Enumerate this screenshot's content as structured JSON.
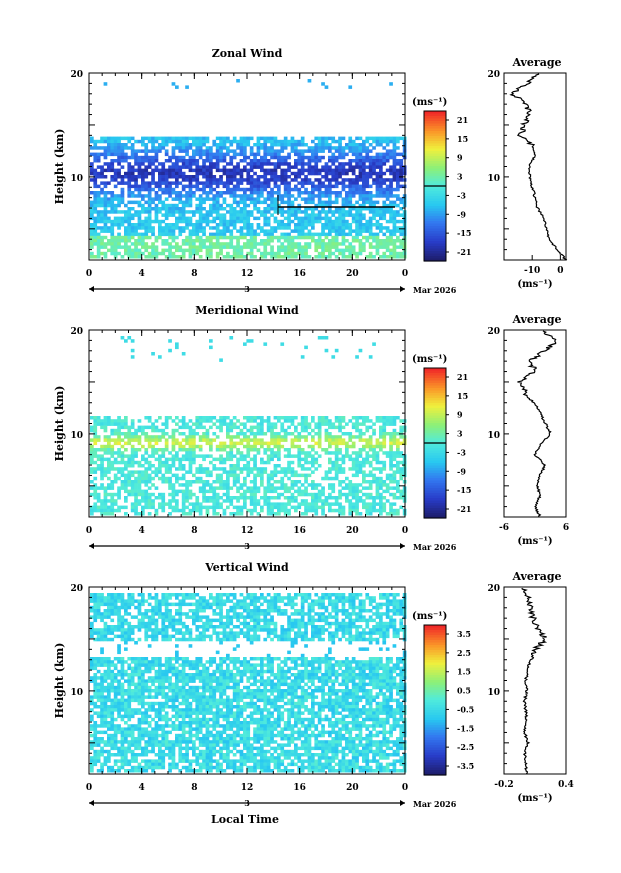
{
  "figure": {
    "date_label": "Mar 2026",
    "xlabel": "Local Time"
  },
  "chart_data": [
    {
      "type": "heatmap",
      "title": "Zonal Wind",
      "ylabel": "Height (km)",
      "xlim": [
        0,
        24
      ],
      "ylim": [
        2,
        20
      ],
      "x_ticks": [
        "0",
        "4",
        "8",
        "12",
        "16",
        "20",
        "0"
      ],
      "y_ticks": [
        "20",
        "10"
      ],
      "day_label": "3",
      "colorbar": {
        "unit": "(ms⁻¹)",
        "range": [
          -24,
          24
        ],
        "labels": [
          "21",
          "15",
          "9",
          "3",
          "-3",
          "-9",
          "-15",
          "-21"
        ]
      },
      "profile": {
        "title": "Average",
        "xlabel": "(ms⁻¹)",
        "xlim": [
          -20,
          2
        ],
        "x_ticks": [
          "-10",
          "0"
        ],
        "y_ticks": [
          "20",
          "10"
        ],
        "heights": [
          2,
          3,
          4,
          5,
          6,
          7,
          8,
          9,
          10,
          11,
          12,
          13,
          14,
          15,
          16,
          17,
          18,
          19,
          20
        ],
        "values": [
          2,
          -1,
          -4,
          -5,
          -6,
          -8,
          -9,
          -10,
          -11,
          -11,
          -9,
          -10,
          -14,
          -13,
          -11,
          -12,
          -17,
          -12,
          -7
        ]
      }
    },
    {
      "type": "heatmap",
      "title": "Meridional Wind",
      "ylabel": "Height (km)",
      "xlim": [
        0,
        24
      ],
      "ylim": [
        2,
        20
      ],
      "x_ticks": [
        "0",
        "4",
        "8",
        "12",
        "16",
        "20",
        "0"
      ],
      "y_ticks": [
        "20",
        "10"
      ],
      "day_label": "3",
      "colorbar": {
        "unit": "(ms⁻¹)",
        "range": [
          -24,
          24
        ],
        "labels": [
          "21",
          "15",
          "9",
          "3",
          "-3",
          "-9",
          "-15",
          "-21"
        ]
      },
      "profile": {
        "title": "Average",
        "xlabel": "(ms⁻¹)",
        "xlim": [
          -6,
          6
        ],
        "x_ticks": [
          "-6",
          "6"
        ],
        "y_ticks": [
          "20",
          "10"
        ],
        "heights": [
          2,
          3,
          4,
          5,
          6,
          7,
          8,
          9,
          10,
          11,
          12,
          13,
          14,
          15,
          16,
          17,
          18,
          19,
          20
        ],
        "values": [
          1,
          0,
          1,
          0.5,
          1,
          2,
          0,
          1,
          3,
          2,
          1,
          0,
          -2,
          -3,
          0,
          -1,
          2,
          4,
          1
        ]
      }
    },
    {
      "type": "heatmap",
      "title": "Vertical Wind",
      "ylabel": "Height (km)",
      "xlim": [
        0,
        24
      ],
      "ylim": [
        2,
        20
      ],
      "x_ticks": [
        "0",
        "4",
        "8",
        "12",
        "16",
        "20",
        "0"
      ],
      "y_ticks": [
        "20",
        "10"
      ],
      "day_label": "3",
      "colorbar": {
        "unit": "(ms⁻¹)",
        "range": [
          -4,
          4
        ],
        "labels": [
          "3.5",
          "2.5",
          "1.5",
          "0.5",
          "-0.5",
          "-1.5",
          "-2.5",
          "-3.5"
        ]
      },
      "profile": {
        "title": "Average",
        "xlabel": "(ms⁻¹)",
        "xlim": [
          -0.2,
          0.4
        ],
        "x_ticks": [
          "-0.2",
          "0.4"
        ],
        "y_ticks": [
          "20",
          "10"
        ],
        "heights": [
          2,
          3,
          4,
          5,
          6,
          7,
          8,
          9,
          10,
          11,
          12,
          13,
          14,
          15,
          16,
          17,
          18,
          19,
          20
        ],
        "values": [
          0.02,
          0.01,
          0.0,
          0.03,
          0.0,
          0.02,
          0.01,
          0.0,
          0.02,
          0.01,
          0.03,
          0.05,
          0.1,
          0.2,
          0.12,
          0.08,
          0.06,
          0.03,
          0.0
        ]
      }
    }
  ]
}
